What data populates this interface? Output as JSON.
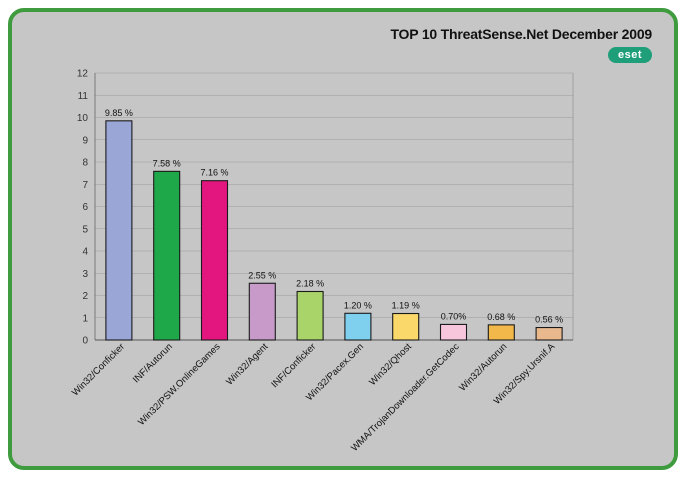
{
  "chart_data": {
    "type": "bar",
    "title": "TOP 10 ThreatSense.Net December 2009",
    "xlabel": "",
    "ylabel": "",
    "ylim": [
      0,
      12
    ],
    "yticks": [
      0,
      1,
      2,
      3,
      4,
      5,
      6,
      7,
      8,
      9,
      10,
      11,
      12
    ],
    "grid": true,
    "categories": [
      "Win32/Conficker",
      "INF/Autorun",
      "Win32/PSW.OnlineGames",
      "Win32/Agent",
      "INF/Conficker",
      "Win32/Pacex.Gen",
      "Win32/Qhost",
      "WMA/TrojanDownloader.GetCodec",
      "Win32/Autorun",
      "Win32/Spy.Ursnif.A"
    ],
    "values": [
      9.85,
      7.58,
      7.16,
      2.55,
      2.18,
      1.2,
      1.19,
      0.7,
      0.68,
      0.56
    ],
    "value_labels": [
      "9.85 %",
      "7.58 %",
      "7.16 %",
      "2.55 %",
      "2.18 %",
      "1.20 %",
      "1.19 %",
      "0.70%",
      "0.68 %",
      "0.56 %"
    ],
    "colors": [
      "#9aa6d6",
      "#1ea84a",
      "#e3167f",
      "#c79ac9",
      "#a9d46a",
      "#7fd0ef",
      "#fbd86a",
      "#f7c6dc",
      "#f2b84a",
      "#e9b98d"
    ]
  },
  "logo": {
    "text": "eset",
    "color": "#1f9e7a"
  },
  "frame": {
    "border_color": "#3e9b3e",
    "background": "#c6c6c6"
  }
}
